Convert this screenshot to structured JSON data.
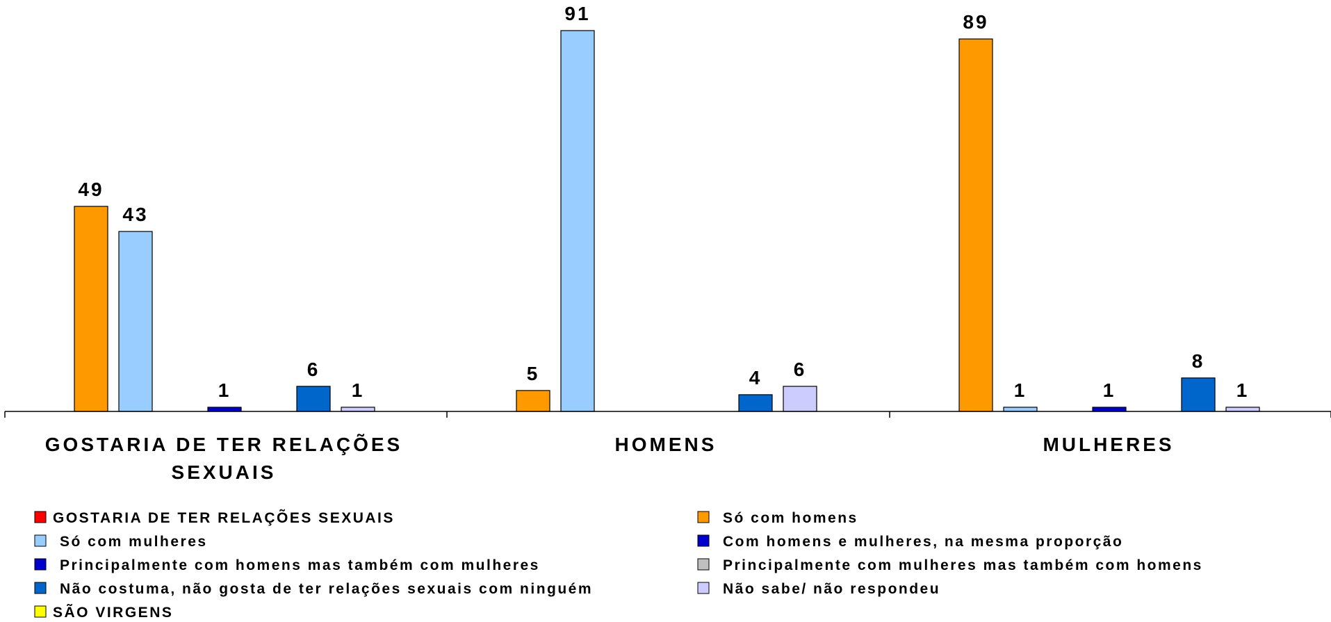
{
  "chart_data": {
    "type": "bar",
    "title": "",
    "xlabel": "",
    "ylabel": "",
    "ylim": [
      0,
      95
    ],
    "grid": false,
    "legend_position": "bottom",
    "categories": [
      [
        "GOSTARIA DE TER RELAÇÕES",
        "SEXUAIS"
      ],
      [
        "HOMENS"
      ],
      [
        "MULHERES"
      ]
    ],
    "legend": [
      {
        "name": "GOSTARIA DE TER RELAÇÕES SEXUAIS",
        "color": "#FF0000",
        "style": "compact"
      },
      {
        "name": "Só com homens",
        "color": "#FF9900",
        "style": "spaced"
      },
      {
        "name": "Só com mulheres",
        "color": "#99CCFF",
        "style": "spaced"
      },
      {
        "name": "Com homens e mulheres, na mesma proporção",
        "color": "#0000CC",
        "style": "spaced"
      },
      {
        "name": "Principalmente com homens mas também com mulheres",
        "color": "#0000CC",
        "style": "spaced"
      },
      {
        "name": "Principalmente com mulheres mas também com homens",
        "color": "#C0C0C0",
        "style": "spaced"
      },
      {
        "name": "Não costuma, não gosta de ter relações sexuais com ninguém",
        "color": "#0066CC",
        "style": "spaced"
      },
      {
        "name": "Não sabe/ não respondeu",
        "color": "#CCCCFF",
        "style": "spaced"
      },
      {
        "name": "SÃO VIRGENS",
        "color": "#FFFF00",
        "style": "compact"
      }
    ],
    "series": [
      {
        "name": "GOSTARIA DE TER RELAÇÕES SEXUAIS",
        "color": "#FF0000",
        "values": [
          null,
          null,
          null
        ]
      },
      {
        "name": "Só com homens",
        "color": "#FF9900",
        "values": [
          49,
          5,
          89
        ]
      },
      {
        "name": "Só com mulheres",
        "color": "#99CCFF",
        "values": [
          43,
          91,
          1
        ]
      },
      {
        "name": "Com homens e mulheres, na mesma proporção",
        "color": "#0000CC",
        "values": [
          null,
          null,
          null
        ]
      },
      {
        "name": "Principalmente com homens mas também com mulheres",
        "color": "#0000CC",
        "values": [
          1,
          null,
          1
        ]
      },
      {
        "name": "Principalmente com mulheres mas também com homens",
        "color": "#C0C0C0",
        "values": [
          null,
          null,
          null
        ]
      },
      {
        "name": "Não costuma, não gosta de ter relações sexuais com ninguém",
        "color": "#0066CC",
        "values": [
          6,
          4,
          8
        ]
      },
      {
        "name": "Não sabe/ não respondeu",
        "color": "#CCCCFF",
        "values": [
          1,
          6,
          1
        ]
      },
      {
        "name": "SÃO VIRGENS",
        "color": "#FFFF00",
        "values": [
          null,
          null,
          null
        ]
      }
    ]
  }
}
